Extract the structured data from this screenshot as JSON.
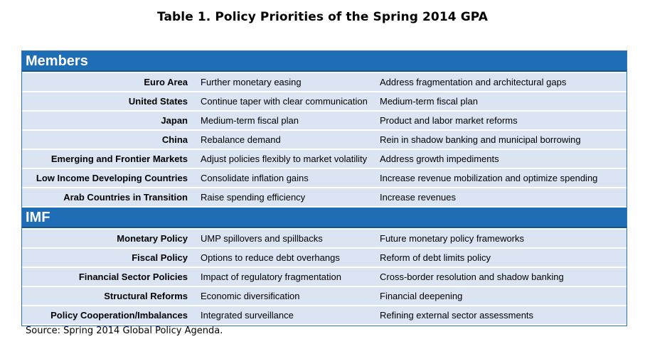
{
  "title": "Table 1. Policy Priorities of the Spring 2014 GPA",
  "members": {
    "header": "Members",
    "rows": [
      {
        "label": "Euro Area",
        "col1": "Further monetary easing",
        "col2": "Address fragmentation and architectural gaps"
      },
      {
        "label": "United States",
        "col1": "Continue taper with clear communication",
        "col2": "Medium-term fiscal plan"
      },
      {
        "label": "Japan",
        "col1": "Medium-term fiscal plan",
        "col2": "Product and labor market reforms"
      },
      {
        "label": "China",
        "col1": "Rebalance demand",
        "col2": "Rein in shadow banking and municipal borrowing"
      },
      {
        "label": "Emerging and Frontier Markets",
        "col1": "Adjust policies flexibly to market volatility",
        "col2": "Address growth impediments"
      },
      {
        "label": "Low Income Developing Countries",
        "col1": "Consolidate inflation gains",
        "col2": "Increase revenue mobilization and optimize spending"
      },
      {
        "label": "Arab Countries in Transition",
        "col1": "Raise spending efficiency",
        "col2": "Increase revenues"
      }
    ]
  },
  "imf": {
    "header": "IMF",
    "rows": [
      {
        "label": "Monetary Policy",
        "col1": "UMP spillovers and spillbacks",
        "col2": "Future monetary policy frameworks"
      },
      {
        "label": "Fiscal Policy",
        "col1": "Options to reduce debt overhangs",
        "col2": "Reform of debt limits policy"
      },
      {
        "label": "Financial Sector Policies",
        "col1": "Impact of regulatory fragmentation",
        "col2": "Cross-border resolution and shadow banking"
      },
      {
        "label": "Structural Reforms",
        "col1": "Economic diversification",
        "col2": "Financial deepening"
      },
      {
        "label": "Policy Cooperation/Imbalances",
        "col1": "Integrated surveillance",
        "col2": "Refining external sector assessments"
      }
    ]
  },
  "source": "Source: Spring 2014 Global Policy Agenda."
}
